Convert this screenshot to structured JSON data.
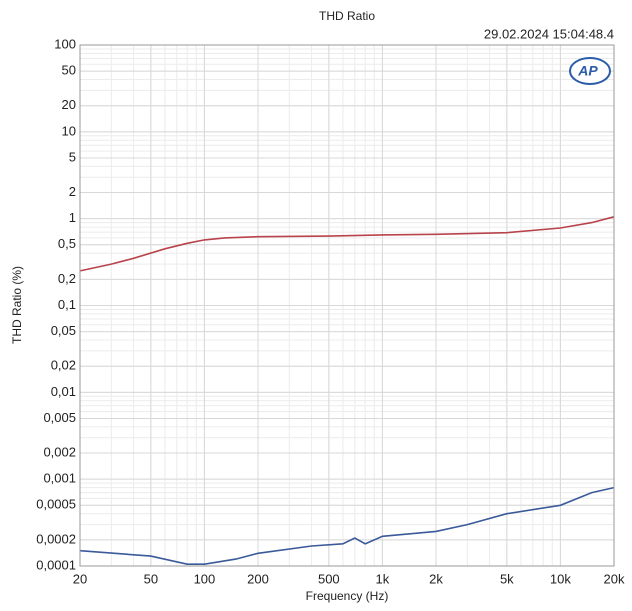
{
  "chart_data": {
    "type": "line",
    "title": "THD Ratio",
    "subtitle": "29.02.2024 15:04:48.4",
    "logo": "AP",
    "x_label": "Frequency (Hz)",
    "y_label": "THD Ratio (%)",
    "xscale": "log",
    "yscale": "log",
    "grid": true,
    "xlim": [
      20,
      20000
    ],
    "xticks": [
      20,
      50,
      100,
      200,
      500,
      {
        "value": 1000,
        "label": "1k"
      },
      {
        "value": 2000,
        "label": "2k"
      },
      {
        "value": 5000,
        "label": "5k"
      },
      {
        "value": 10000,
        "label": "10k"
      },
      {
        "value": 20000,
        "label": "20k"
      }
    ],
    "ylim": [
      0.0001,
      100
    ],
    "yticks": [
      100,
      50,
      20,
      10,
      5,
      2,
      1,
      {
        "value": 0.5,
        "label": "0,5"
      },
      {
        "value": 0.2,
        "label": "0,2"
      },
      {
        "value": 0.1,
        "label": "0,1"
      },
      {
        "value": 0.05,
        "label": "0,05"
      },
      {
        "value": 0.02,
        "label": "0,02"
      },
      {
        "value": 0.01,
        "label": "0,01"
      },
      {
        "value": 0.005,
        "label": "0,005"
      },
      {
        "value": 0.002,
        "label": "0,002"
      },
      {
        "value": 0.001,
        "label": "0,001"
      },
      {
        "value": 0.0005,
        "label": "0,0005"
      },
      {
        "value": 0.0002,
        "label": "0,0002"
      },
      {
        "value": 0.0001,
        "label": "0,0001"
      }
    ],
    "series": [
      {
        "color": "#b8434a",
        "x": [
          20,
          30,
          40,
          60,
          80,
          100,
          130,
          200,
          500,
          1000,
          2000,
          5000,
          10000,
          15000,
          20000
        ],
        "values": [
          0.25,
          0.3,
          0.35,
          0.45,
          0.52,
          0.57,
          0.6,
          0.62,
          0.63,
          0.65,
          0.66,
          0.69,
          0.78,
          0.9,
          1.05
        ]
      },
      {
        "color": "#3b5a9a",
        "x": [
          20,
          50,
          80,
          100,
          150,
          200,
          400,
          600,
          700,
          800,
          1000,
          2000,
          3000,
          5000,
          10000,
          15000,
          20000
        ],
        "values": [
          0.00015,
          0.00013,
          0.000105,
          0.000105,
          0.00012,
          0.00014,
          0.00017,
          0.00018,
          0.00021,
          0.00018,
          0.00022,
          0.00025,
          0.0003,
          0.0004,
          0.0005,
          0.0007,
          0.0008
        ]
      }
    ]
  }
}
